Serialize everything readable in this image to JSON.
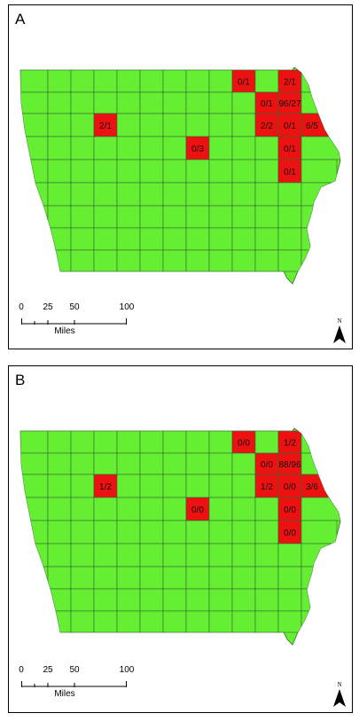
{
  "colors": {
    "normal": "#66ee33",
    "highlight": "#ee1111",
    "border": "#2f6a2f"
  },
  "scale": {
    "ticks": [
      "0",
      "25",
      "50",
      "100"
    ],
    "unit": "Miles"
  },
  "north_label": "N",
  "panels": [
    {
      "letter": "A",
      "counties": [
        {
          "row": 0,
          "col": 9,
          "label": "0/1"
        },
        {
          "row": 0,
          "col": 11,
          "label": "2/1"
        },
        {
          "row": 1,
          "col": 10,
          "label": "0/1"
        },
        {
          "row": 1,
          "col": 11,
          "label": "96/27"
        },
        {
          "row": 2,
          "col": 3,
          "label": "2/1"
        },
        {
          "row": 2,
          "col": 10,
          "label": "2/2"
        },
        {
          "row": 2,
          "col": 11,
          "label": "0/1"
        },
        {
          "row": 2,
          "col": 12,
          "label": "6/5"
        },
        {
          "row": 3,
          "col": 7,
          "label": "0/3"
        },
        {
          "row": 3,
          "col": 11,
          "label": "0/1"
        },
        {
          "row": 4,
          "col": 11,
          "label": "0/1"
        }
      ]
    },
    {
      "letter": "B",
      "counties": [
        {
          "row": 0,
          "col": 9,
          "label": "0/0"
        },
        {
          "row": 0,
          "col": 11,
          "label": "1/2"
        },
        {
          "row": 1,
          "col": 10,
          "label": "0/0"
        },
        {
          "row": 1,
          "col": 11,
          "label": "88/96"
        },
        {
          "row": 2,
          "col": 3,
          "label": "1/2"
        },
        {
          "row": 2,
          "col": 10,
          "label": "1/2"
        },
        {
          "row": 2,
          "col": 11,
          "label": "0/0"
        },
        {
          "row": 2,
          "col": 12,
          "label": "3/6"
        },
        {
          "row": 3,
          "col": 7,
          "label": "0/0"
        },
        {
          "row": 3,
          "col": 11,
          "label": "0/0"
        },
        {
          "row": 4,
          "col": 11,
          "label": "0/0"
        }
      ]
    }
  ]
}
